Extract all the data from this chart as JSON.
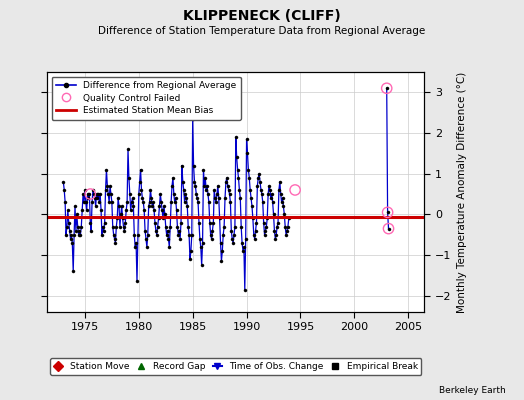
{
  "title": "KLIPPENECK (CLIFF)",
  "subtitle": "Difference of Station Temperature Data from Regional Average",
  "ylabel": "Monthly Temperature Anomaly Difference (°C)",
  "bias": -0.07,
  "xlim": [
    1971.5,
    2006.5
  ],
  "ylim": [
    -2.4,
    3.5
  ],
  "yticks": [
    -2,
    -1,
    0,
    1,
    2,
    3
  ],
  "xticks": [
    1975,
    1980,
    1985,
    1990,
    1995,
    2000,
    2005
  ],
  "line_color": "#0000cc",
  "bias_color": "#cc0000",
  "qc_color": "#ff69b4",
  "bg_color": "#e8e8e8",
  "plot_bg": "#ffffff",
  "footer": "Berkeley Earth",
  "data": [
    [
      1973.0,
      0.8
    ],
    [
      1973.083,
      0.6
    ],
    [
      1973.167,
      0.3
    ],
    [
      1973.25,
      -0.5
    ],
    [
      1973.333,
      -0.3
    ],
    [
      1973.417,
      0.1
    ],
    [
      1973.5,
      -0.2
    ],
    [
      1973.583,
      -0.4
    ],
    [
      1973.667,
      -0.6
    ],
    [
      1973.75,
      -0.5
    ],
    [
      1973.833,
      -0.7
    ],
    [
      1973.917,
      -1.4
    ],
    [
      1974.0,
      -0.5
    ],
    [
      1974.083,
      0.2
    ],
    [
      1974.167,
      -0.4
    ],
    [
      1974.25,
      0.0
    ],
    [
      1974.333,
      -0.3
    ],
    [
      1974.417,
      -0.5
    ],
    [
      1974.5,
      -0.4
    ],
    [
      1974.583,
      -0.5
    ],
    [
      1974.667,
      -0.3
    ],
    [
      1974.75,
      0.1
    ],
    [
      1974.833,
      0.5
    ],
    [
      1974.917,
      0.3
    ],
    [
      1975.0,
      0.6
    ],
    [
      1975.083,
      0.3
    ],
    [
      1975.167,
      0.1
    ],
    [
      1975.25,
      0.5
    ],
    [
      1975.333,
      0.4
    ],
    [
      1975.417,
      0.5
    ],
    [
      1975.5,
      -0.2
    ],
    [
      1975.583,
      -0.4
    ],
    [
      1975.667,
      0.3
    ],
    [
      1975.75,
      0.6
    ],
    [
      1975.833,
      0.5
    ],
    [
      1975.917,
      0.4
    ],
    [
      1976.0,
      0.2
    ],
    [
      1976.083,
      0.5
    ],
    [
      1976.167,
      0.4
    ],
    [
      1976.25,
      0.5
    ],
    [
      1976.333,
      0.3
    ],
    [
      1976.417,
      0.5
    ],
    [
      1976.5,
      0.1
    ],
    [
      1976.583,
      -0.5
    ],
    [
      1976.667,
      -0.3
    ],
    [
      1976.75,
      -0.4
    ],
    [
      1976.833,
      -0.2
    ],
    [
      1976.917,
      0.6
    ],
    [
      1977.0,
      1.1
    ],
    [
      1977.083,
      0.7
    ],
    [
      1977.167,
      0.5
    ],
    [
      1977.25,
      0.3
    ],
    [
      1977.333,
      0.7
    ],
    [
      1977.417,
      0.5
    ],
    [
      1977.5,
      0.3
    ],
    [
      1977.583,
      -0.3
    ],
    [
      1977.667,
      -0.5
    ],
    [
      1977.75,
      -0.6
    ],
    [
      1977.833,
      -0.7
    ],
    [
      1977.917,
      -0.3
    ],
    [
      1978.0,
      -0.1
    ],
    [
      1978.083,
      0.4
    ],
    [
      1978.167,
      0.2
    ],
    [
      1978.25,
      -0.3
    ],
    [
      1978.333,
      0.0
    ],
    [
      1978.417,
      0.2
    ],
    [
      1978.5,
      -0.1
    ],
    [
      1978.583,
      -0.3
    ],
    [
      1978.667,
      -0.4
    ],
    [
      1978.75,
      -0.2
    ],
    [
      1978.833,
      0.1
    ],
    [
      1978.917,
      0.3
    ],
    [
      1979.0,
      1.6
    ],
    [
      1979.083,
      0.9
    ],
    [
      1979.167,
      0.5
    ],
    [
      1979.25,
      0.1
    ],
    [
      1979.333,
      0.3
    ],
    [
      1979.417,
      0.4
    ],
    [
      1979.5,
      0.2
    ],
    [
      1979.583,
      -0.5
    ],
    [
      1979.667,
      -0.8
    ],
    [
      1979.75,
      -0.7
    ],
    [
      1979.833,
      -1.65
    ],
    [
      1979.917,
      -0.5
    ],
    [
      1980.0,
      0.5
    ],
    [
      1980.083,
      0.8
    ],
    [
      1980.167,
      1.1
    ],
    [
      1980.25,
      0.6
    ],
    [
      1980.333,
      0.4
    ],
    [
      1980.417,
      0.3
    ],
    [
      1980.5,
      0.1
    ],
    [
      1980.583,
      -0.4
    ],
    [
      1980.667,
      -0.6
    ],
    [
      1980.75,
      -0.8
    ],
    [
      1980.833,
      -0.5
    ],
    [
      1980.917,
      0.2
    ],
    [
      1981.0,
      0.3
    ],
    [
      1981.083,
      0.6
    ],
    [
      1981.167,
      0.4
    ],
    [
      1981.25,
      0.2
    ],
    [
      1981.333,
      0.3
    ],
    [
      1981.417,
      0.1
    ],
    [
      1981.5,
      -0.2
    ],
    [
      1981.583,
      -0.4
    ],
    [
      1981.667,
      -0.5
    ],
    [
      1981.75,
      -0.3
    ],
    [
      1981.833,
      -0.1
    ],
    [
      1981.917,
      0.2
    ],
    [
      1982.0,
      0.5
    ],
    [
      1982.083,
      0.3
    ],
    [
      1982.167,
      0.1
    ],
    [
      1982.25,
      -0.1
    ],
    [
      1982.333,
      0.2
    ],
    [
      1982.417,
      0.0
    ],
    [
      1982.5,
      -0.3
    ],
    [
      1982.583,
      -0.5
    ],
    [
      1982.667,
      -0.4
    ],
    [
      1982.75,
      -0.6
    ],
    [
      1982.833,
      -0.8
    ],
    [
      1982.917,
      -0.3
    ],
    [
      1983.0,
      0.3
    ],
    [
      1983.083,
      0.7
    ],
    [
      1983.167,
      0.9
    ],
    [
      1983.25,
      0.5
    ],
    [
      1983.333,
      0.3
    ],
    [
      1983.417,
      0.4
    ],
    [
      1983.5,
      0.1
    ],
    [
      1983.583,
      -0.3
    ],
    [
      1983.667,
      -0.5
    ],
    [
      1983.75,
      -0.4
    ],
    [
      1983.833,
      -0.6
    ],
    [
      1983.917,
      -0.2
    ],
    [
      1984.0,
      1.2
    ],
    [
      1984.083,
      0.8
    ],
    [
      1984.167,
      0.6
    ],
    [
      1984.25,
      0.3
    ],
    [
      1984.333,
      0.5
    ],
    [
      1984.417,
      0.4
    ],
    [
      1984.5,
      0.2
    ],
    [
      1984.583,
      -0.3
    ],
    [
      1984.667,
      -0.5
    ],
    [
      1984.75,
      -1.1
    ],
    [
      1984.833,
      -0.9
    ],
    [
      1984.917,
      -0.5
    ],
    [
      1985.0,
      2.35
    ],
    [
      1985.083,
      1.2
    ],
    [
      1985.167,
      0.8
    ],
    [
      1985.25,
      0.7
    ],
    [
      1985.333,
      0.5
    ],
    [
      1985.417,
      0.4
    ],
    [
      1985.5,
      0.3
    ],
    [
      1985.583,
      -0.2
    ],
    [
      1985.667,
      -0.6
    ],
    [
      1985.75,
      -0.8
    ],
    [
      1985.833,
      -1.25
    ],
    [
      1985.917,
      -0.7
    ],
    [
      1986.0,
      1.1
    ],
    [
      1986.083,
      0.7
    ],
    [
      1986.167,
      0.9
    ],
    [
      1986.25,
      0.6
    ],
    [
      1986.333,
      0.7
    ],
    [
      1986.417,
      0.5
    ],
    [
      1986.5,
      0.3
    ],
    [
      1986.583,
      -0.2
    ],
    [
      1986.667,
      -0.5
    ],
    [
      1986.75,
      -0.6
    ],
    [
      1986.833,
      -0.4
    ],
    [
      1986.917,
      -0.2
    ],
    [
      1987.0,
      0.6
    ],
    [
      1987.083,
      0.4
    ],
    [
      1987.167,
      0.3
    ],
    [
      1987.25,
      0.5
    ],
    [
      1987.333,
      0.7
    ],
    [
      1987.417,
      0.4
    ],
    [
      1987.5,
      -0.1
    ],
    [
      1987.583,
      -0.7
    ],
    [
      1987.667,
      -1.15
    ],
    [
      1987.75,
      -0.9
    ],
    [
      1987.833,
      -0.5
    ],
    [
      1987.917,
      -0.3
    ],
    [
      1988.0,
      0.4
    ],
    [
      1988.083,
      0.8
    ],
    [
      1988.167,
      0.9
    ],
    [
      1988.25,
      0.7
    ],
    [
      1988.333,
      0.6
    ],
    [
      1988.417,
      0.5
    ],
    [
      1988.5,
      0.3
    ],
    [
      1988.583,
      -0.4
    ],
    [
      1988.667,
      -0.6
    ],
    [
      1988.75,
      -0.7
    ],
    [
      1988.833,
      -0.5
    ],
    [
      1988.917,
      -0.3
    ],
    [
      1989.0,
      1.9
    ],
    [
      1989.083,
      1.4
    ],
    [
      1989.167,
      1.1
    ],
    [
      1989.25,
      0.9
    ],
    [
      1989.333,
      0.6
    ],
    [
      1989.417,
      0.4
    ],
    [
      1989.5,
      -0.3
    ],
    [
      1989.583,
      -0.7
    ],
    [
      1989.667,
      -0.9
    ],
    [
      1989.75,
      -0.8
    ],
    [
      1989.833,
      -1.85
    ],
    [
      1989.917,
      -0.6
    ],
    [
      1990.0,
      1.85
    ],
    [
      1990.083,
      1.5
    ],
    [
      1990.167,
      1.1
    ],
    [
      1990.25,
      0.9
    ],
    [
      1990.333,
      0.6
    ],
    [
      1990.417,
      0.4
    ],
    [
      1990.5,
      0.2
    ],
    [
      1990.583,
      -0.1
    ],
    [
      1990.667,
      -0.5
    ],
    [
      1990.75,
      -0.6
    ],
    [
      1990.833,
      -0.4
    ],
    [
      1990.917,
      -0.2
    ],
    [
      1991.0,
      0.7
    ],
    [
      1991.083,
      0.9
    ],
    [
      1991.167,
      1.0
    ],
    [
      1991.25,
      0.8
    ],
    [
      1991.333,
      0.6
    ],
    [
      1991.417,
      0.5
    ],
    [
      1991.5,
      0.3
    ],
    [
      1991.583,
      -0.2
    ],
    [
      1991.667,
      -0.5
    ],
    [
      1991.75,
      -0.4
    ],
    [
      1991.833,
      -0.3
    ],
    [
      1991.917,
      -0.1
    ],
    [
      1992.0,
      0.5
    ],
    [
      1992.083,
      0.7
    ],
    [
      1992.167,
      0.6
    ],
    [
      1992.25,
      0.4
    ],
    [
      1992.333,
      0.5
    ],
    [
      1992.417,
      0.3
    ],
    [
      1992.5,
      0.0
    ],
    [
      1992.583,
      -0.4
    ],
    [
      1992.667,
      -0.6
    ],
    [
      1992.75,
      -0.5
    ],
    [
      1992.833,
      -0.3
    ],
    [
      1992.917,
      -0.2
    ],
    [
      1993.0,
      0.6
    ],
    [
      1993.083,
      0.8
    ],
    [
      1993.167,
      0.5
    ],
    [
      1993.25,
      0.3
    ],
    [
      1993.333,
      0.4
    ],
    [
      1993.417,
      0.2
    ],
    [
      1993.5,
      0.0
    ],
    [
      1993.583,
      -0.3
    ],
    [
      1993.667,
      -0.5
    ],
    [
      1993.75,
      -0.4
    ],
    [
      1993.833,
      -0.3
    ],
    [
      1993.917,
      -0.1
    ],
    [
      2003.0,
      3.1
    ],
    [
      2003.083,
      0.05
    ],
    [
      2003.167,
      -0.35
    ]
  ],
  "qc_points": [
    [
      1975.5,
      0.5
    ],
    [
      1994.5,
      0.6
    ],
    [
      2003.0,
      3.1
    ],
    [
      2003.083,
      0.05
    ],
    [
      2003.167,
      -0.35
    ]
  ]
}
